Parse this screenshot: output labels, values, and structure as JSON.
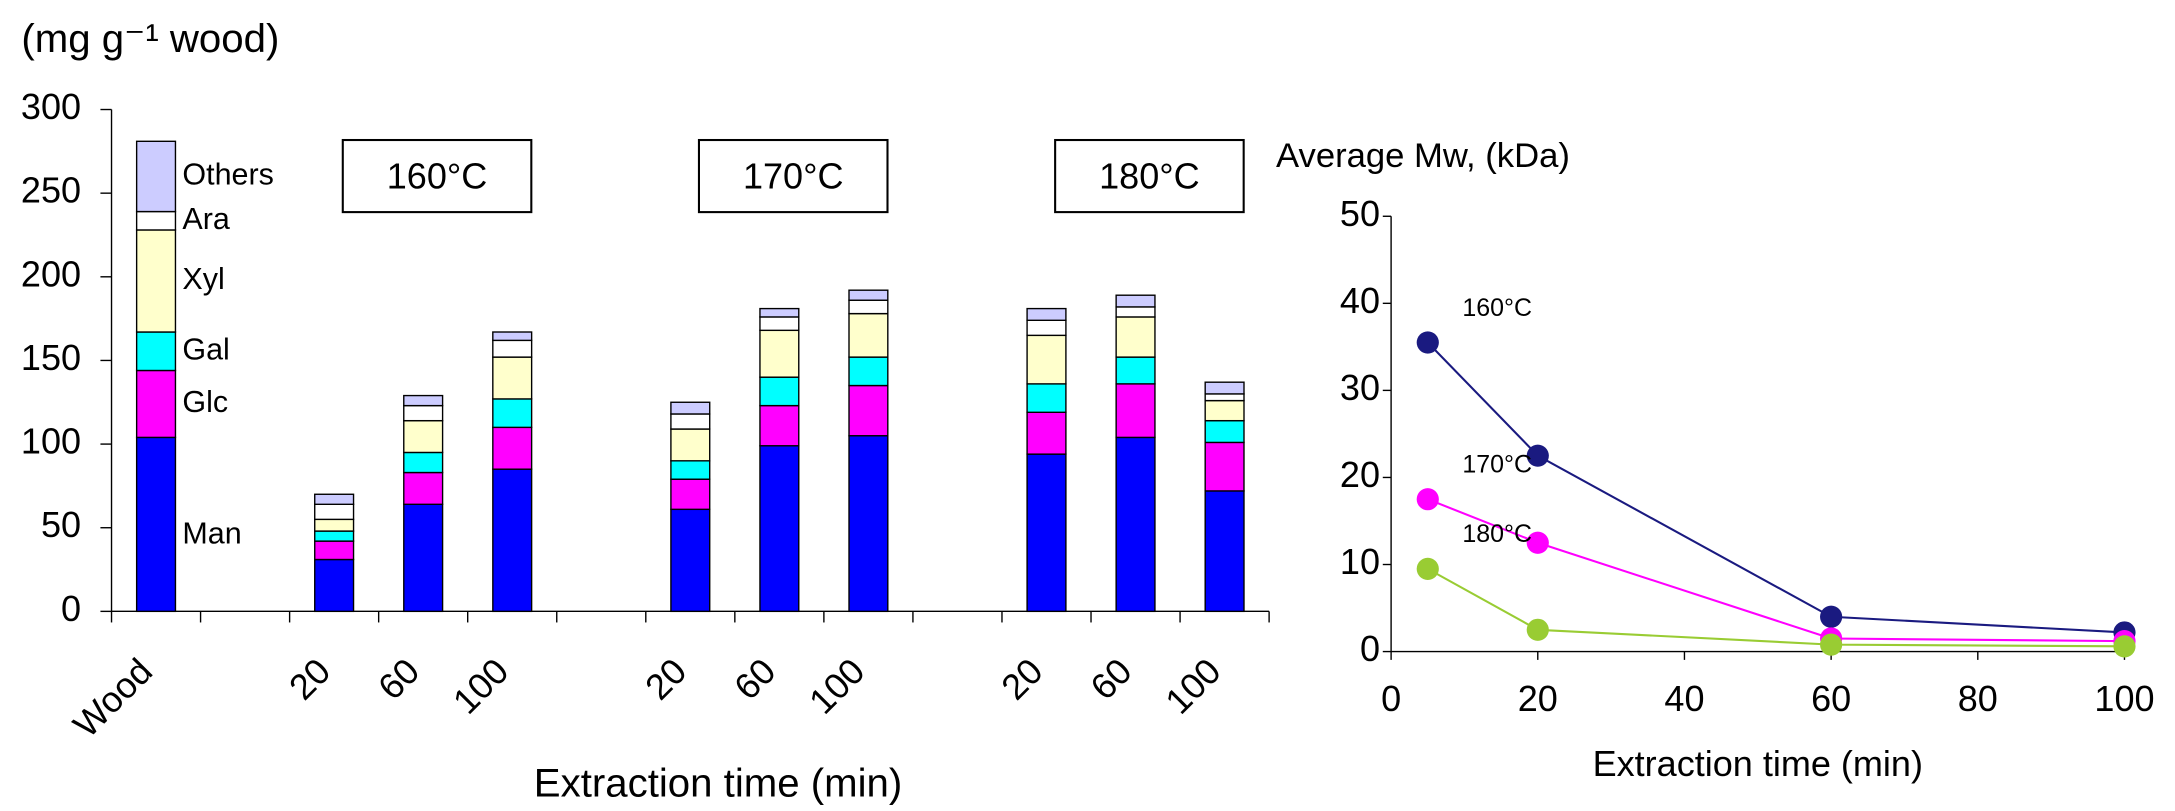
{
  "chart_data": [
    {
      "type": "stacked_bar",
      "ylabel": "(mg g⁻¹ wood)",
      "xlabel": "Extraction time (min)",
      "categories": [
        "Wood",
        null,
        "20",
        "60",
        "100",
        null,
        "20",
        "60",
        "100",
        null,
        "20",
        "60",
        "100"
      ],
      "series": [
        {
          "name": "Man",
          "color": "#0000ff",
          "values": [
            104,
            null,
            31,
            64,
            85,
            null,
            61,
            99,
            105,
            null,
            94,
            104,
            72
          ]
        },
        {
          "name": "Glc",
          "color": "#ff00ff",
          "values": [
            40,
            null,
            11,
            19,
            25,
            null,
            18,
            24,
            30,
            null,
            25,
            32,
            29
          ]
        },
        {
          "name": "Gal",
          "color": "#00ffff",
          "values": [
            23,
            null,
            6,
            12,
            17,
            null,
            11,
            17,
            17,
            null,
            17,
            16,
            13
          ]
        },
        {
          "name": "Xyl",
          "color": "#ffffcc",
          "values": [
            61,
            null,
            7,
            19,
            25,
            null,
            19,
            28,
            26,
            null,
            29,
            24,
            12
          ]
        },
        {
          "name": "Ara",
          "color": "#ffffff",
          "values": [
            11,
            null,
            9,
            9,
            10,
            null,
            9,
            8,
            8,
            null,
            9,
            6,
            4
          ]
        },
        {
          "name": "Others",
          "color": "#ccccff",
          "values": [
            42,
            null,
            6,
            6,
            5,
            null,
            7,
            5,
            6,
            null,
            7,
            7,
            7
          ]
        }
      ],
      "annotations": [
        "160°C",
        "170°C",
        "180°C"
      ],
      "ylim": [
        0,
        300
      ],
      "yticks": [
        0,
        50,
        100,
        150,
        200,
        250,
        300
      ]
    },
    {
      "type": "line",
      "ylabel": "Average Mw, (kDa)",
      "xlabel": "Extraction time (min)",
      "x": [
        5,
        20,
        60,
        100
      ],
      "series": [
        {
          "name": "160°C",
          "color": "#1a1a80",
          "values": [
            35.5,
            22.5,
            4,
            2.2
          ]
        },
        {
          "name": "170°C",
          "color": "#ff00ff",
          "values": [
            17.5,
            12.5,
            1.5,
            1.2
          ]
        },
        {
          "name": "180°C",
          "color": "#99cc33",
          "values": [
            9.5,
            2.5,
            0.8,
            0.6
          ]
        }
      ],
      "xlim": [
        0,
        100
      ],
      "xticks": [
        0,
        20,
        40,
        60,
        80,
        100
      ],
      "ylim": [
        0,
        50
      ],
      "yticks": [
        0,
        10,
        20,
        30,
        40,
        50
      ]
    }
  ]
}
